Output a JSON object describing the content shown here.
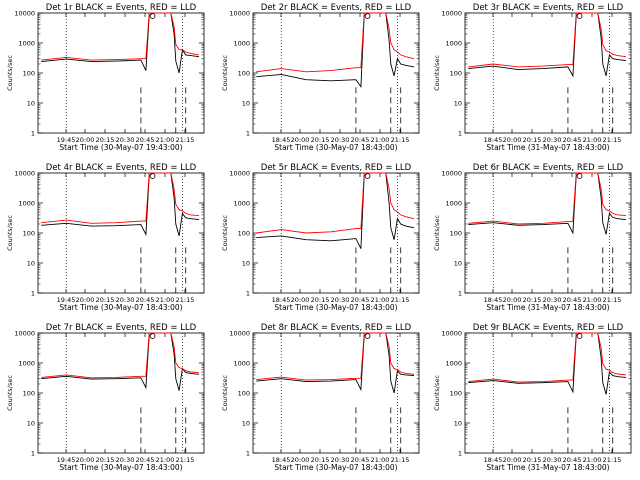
{
  "figure": {
    "background": "#ffffff",
    "colors": {
      "events": "#000000",
      "lld": "#ff0000",
      "axes": "#000000"
    }
  },
  "chart_data": [
    {
      "type": "line",
      "title": "Det 1r BLACK = Events, RED = LLD",
      "xlabel": "Start Time (30-May-07 19:43:00)",
      "ylabel": "Counts/sec",
      "xlim": [
        "19:43",
        "21:23"
      ],
      "ylim": [
        1,
        10000
      ],
      "yscale": "log",
      "xtick_labels": [
        "19:45",
        "20:00",
        "20:15",
        "20:30",
        "20:45",
        "21:00",
        "21:15"
      ],
      "ytick_labels": [
        "1",
        "10",
        "100",
        "1000",
        "10000"
      ],
      "legend": "none",
      "grid": false,
      "x": [
        "19:45",
        "20:00",
        "20:15",
        "20:30",
        "20:45",
        "20:48",
        "20:50",
        "20:52",
        "20:55",
        "21:00",
        "21:03",
        "21:05",
        "21:06",
        "21:08",
        "21:10",
        "21:12",
        "21:15",
        "21:20"
      ],
      "series": [
        {
          "name": "Events",
          "values": [
            240,
            290,
            240,
            250,
            270,
            120,
            8000,
            10000,
            10000,
            10000,
            10000,
            2000,
            250,
            100,
            600,
            400,
            380,
            350
          ]
        },
        {
          "name": "LLD",
          "values": [
            270,
            330,
            270,
            280,
            300,
            300,
            10000,
            10000,
            10000,
            10000,
            10000,
            3500,
            900,
            600,
            600,
            500,
            450,
            400
          ]
        }
      ],
      "annotations": {
        "dotted_x": [
          "20:00",
          "21:10"
        ],
        "dashed_x": [
          "20:45",
          "21:06",
          "21:12"
        ],
        "marker_x": "20:52"
      }
    },
    {
      "type": "line",
      "title": "Det 2r BLACK = Events, RED = LLD",
      "xlabel": "Start Time (30-May-07 18:43:00)",
      "ylabel": "Counts/sec",
      "xlim": [
        "18:43",
        "21:23"
      ],
      "ylim": [
        1,
        10000
      ],
      "yscale": "log",
      "xtick_labels": [
        "18:45",
        "20:00",
        "20:15",
        "20:30",
        "20:45",
        "21:00",
        "21:15"
      ],
      "ytick_labels": [
        "1",
        "10",
        "100",
        "1000",
        "10000"
      ],
      "legend": "none",
      "grid": false,
      "x": [
        "19:45",
        "20:00",
        "20:15",
        "20:30",
        "20:45",
        "20:48",
        "20:50",
        "20:52",
        "20:55",
        "21:00",
        "21:03",
        "21:05",
        "21:06",
        "21:08",
        "21:10",
        "21:12",
        "21:15",
        "21:20"
      ],
      "series": [
        {
          "name": "Events",
          "values": [
            75,
            90,
            60,
            55,
            60,
            35,
            8000,
            10000,
            10000,
            10000,
            10000,
            1200,
            200,
            80,
            300,
            200,
            180,
            160
          ]
        },
        {
          "name": "LLD",
          "values": [
            110,
            140,
            110,
            120,
            150,
            150,
            10000,
            10000,
            10000,
            10000,
            10000,
            3000,
            1000,
            600,
            500,
            400,
            350,
            300
          ]
        }
      ],
      "annotations": {
        "dotted_x": [
          "20:00",
          "21:10"
        ],
        "dashed_x": [
          "20:45",
          "21:06",
          "21:12"
        ],
        "marker_x": "20:52"
      }
    },
    {
      "type": "line",
      "title": "Det 3r BLACK = Events, RED = LLD",
      "xlabel": "Start Time (31-May-07 18:43:00)",
      "ylabel": "Counts/sec",
      "xlim": [
        "18:43",
        "21:23"
      ],
      "ylim": [
        1,
        10000
      ],
      "yscale": "log",
      "xtick_labels": [
        "18:45",
        "20:00",
        "20:15",
        "20:30",
        "20:45",
        "21:00",
        "21:15"
      ],
      "ytick_labels": [
        "1",
        "10",
        "100",
        "1000",
        "10000"
      ],
      "legend": "none",
      "grid": false,
      "x": [
        "19:45",
        "20:00",
        "20:15",
        "20:30",
        "20:45",
        "20:48",
        "20:50",
        "20:52",
        "20:55",
        "21:00",
        "21:03",
        "21:05",
        "21:06",
        "21:08",
        "21:10",
        "21:12",
        "21:15",
        "21:20"
      ],
      "series": [
        {
          "name": "Events",
          "values": [
            140,
            170,
            130,
            140,
            160,
            80,
            8000,
            10000,
            10000,
            10000,
            10000,
            1500,
            200,
            80,
            400,
            300,
            280,
            260
          ]
        },
        {
          "name": "LLD",
          "values": [
            160,
            200,
            160,
            170,
            190,
            190,
            10000,
            10000,
            10000,
            10000,
            10000,
            3000,
            900,
            550,
            500,
            420,
            380,
            350
          ]
        }
      ],
      "annotations": {
        "dotted_x": [
          "20:00",
          "21:10"
        ],
        "dashed_x": [
          "20:45",
          "21:06",
          "21:12"
        ],
        "marker_x": "20:52"
      }
    },
    {
      "type": "line",
      "title": "Det 4r BLACK = Events, RED = LLD",
      "xlabel": "Start Time (30-May-07 18:43:00)",
      "ylabel": "Counts/sec",
      "xlim": [
        "18:43",
        "21:23"
      ],
      "ylim": [
        1,
        10000
      ],
      "yscale": "log",
      "xtick_labels": [
        "19:45",
        "20:00",
        "20:15",
        "20:30",
        "20:45",
        "21:00",
        "21:15"
      ],
      "ytick_labels": [
        "1",
        "10",
        "100",
        "1000",
        "10000"
      ],
      "legend": "none",
      "grid": false,
      "x": [
        "19:45",
        "20:00",
        "20:15",
        "20:30",
        "20:45",
        "20:48",
        "20:50",
        "20:52",
        "20:55",
        "21:00",
        "21:03",
        "21:05",
        "21:06",
        "21:08",
        "21:10",
        "21:12",
        "21:15",
        "21:20"
      ],
      "series": [
        {
          "name": "Events",
          "values": [
            180,
            210,
            170,
            175,
            190,
            90,
            8000,
            10000,
            10000,
            10000,
            10000,
            1500,
            200,
            80,
            450,
            320,
            300,
            280
          ]
        },
        {
          "name": "LLD",
          "values": [
            220,
            270,
            210,
            220,
            250,
            250,
            10000,
            10000,
            10000,
            10000,
            10000,
            3000,
            900,
            600,
            550,
            450,
            400,
            380
          ]
        }
      ],
      "annotations": {
        "dotted_x": [
          "20:00",
          "21:10"
        ],
        "dashed_x": [
          "20:45",
          "21:06",
          "21:12"
        ],
        "marker_x": "20:52"
      }
    },
    {
      "type": "line",
      "title": "Det 5r BLACK = Events, RED = LLD",
      "xlabel": "Start Time (30-May-07 18:43:00)",
      "ylabel": "Counts/sec",
      "xlim": [
        "18:43",
        "21:23"
      ],
      "ylim": [
        1,
        10000
      ],
      "yscale": "log",
      "xtick_labels": [
        "18:45",
        "20:00",
        "20:15",
        "20:30",
        "20:45",
        "21:00",
        "21:15"
      ],
      "ytick_labels": [
        "1",
        "10",
        "100",
        "1000",
        "10000"
      ],
      "legend": "none",
      "grid": false,
      "x": [
        "19:45",
        "20:00",
        "20:15",
        "20:30",
        "20:45",
        "20:48",
        "20:50",
        "20:52",
        "20:55",
        "21:00",
        "21:03",
        "21:05",
        "21:06",
        "21:08",
        "21:10",
        "21:12",
        "21:15",
        "21:20"
      ],
      "series": [
        {
          "name": "Events",
          "values": [
            70,
            80,
            60,
            55,
            65,
            30,
            8000,
            10000,
            10000,
            10000,
            10000,
            1000,
            150,
            60,
            300,
            200,
            170,
            150
          ]
        },
        {
          "name": "LLD",
          "values": [
            100,
            130,
            100,
            110,
            140,
            140,
            10000,
            10000,
            10000,
            10000,
            10000,
            3000,
            1000,
            600,
            500,
            400,
            350,
            300
          ]
        }
      ],
      "annotations": {
        "dotted_x": [
          "20:00",
          "21:10"
        ],
        "dashed_x": [
          "20:45",
          "21:06",
          "21:12"
        ],
        "marker_x": "20:52"
      }
    },
    {
      "type": "line",
      "title": "Det 6r BLACK = Events, RED = LLD",
      "xlabel": "Start Time (31-May-07 18:43:00)",
      "ylabel": "Counts/sec",
      "xlim": [
        "18:43",
        "21:23"
      ],
      "ylim": [
        1,
        10000
      ],
      "yscale": "log",
      "xtick_labels": [
        "18:45",
        "20:00",
        "20:15",
        "20:30",
        "20:45",
        "21:00",
        "21:15"
      ],
      "ytick_labels": [
        "1",
        "10",
        "100",
        "1000",
        "10000"
      ],
      "legend": "none",
      "grid": false,
      "x": [
        "19:45",
        "20:00",
        "20:15",
        "20:30",
        "20:45",
        "20:48",
        "20:50",
        "20:52",
        "20:55",
        "21:00",
        "21:03",
        "21:05",
        "21:06",
        "21:08",
        "21:10",
        "21:12",
        "21:15",
        "21:20"
      ],
      "series": [
        {
          "name": "Events",
          "values": [
            190,
            220,
            180,
            190,
            210,
            100,
            8000,
            10000,
            10000,
            10000,
            10000,
            1500,
            220,
            90,
            450,
            330,
            300,
            280
          ]
        },
        {
          "name": "LLD",
          "values": [
            210,
            250,
            200,
            210,
            240,
            240,
            10000,
            10000,
            10000,
            10000,
            10000,
            3000,
            900,
            600,
            550,
            450,
            400,
            380
          ]
        }
      ],
      "annotations": {
        "dotted_x": [
          "20:00",
          "21:10"
        ],
        "dashed_x": [
          "20:45",
          "21:06",
          "21:12"
        ],
        "marker_x": "20:52"
      }
    },
    {
      "type": "line",
      "title": "Det 7r BLACK = Events, RED = LLD",
      "xlabel": "Start Time (30-May-07 18:43:00)",
      "ylabel": "Counts/sec",
      "xlim": [
        "18:43",
        "21:23"
      ],
      "ylim": [
        1,
        10000
      ],
      "yscale": "log",
      "xtick_labels": [
        "19:45",
        "20:00",
        "20:15",
        "20:30",
        "20:45",
        "21:00",
        "21:15"
      ],
      "ytick_labels": [
        "1",
        "10",
        "100",
        "1000",
        "10000"
      ],
      "legend": "none",
      "grid": false,
      "x": [
        "19:45",
        "20:00",
        "20:15",
        "20:30",
        "20:45",
        "20:48",
        "20:50",
        "20:52",
        "20:55",
        "21:00",
        "21:03",
        "21:05",
        "21:06",
        "21:08",
        "21:10",
        "21:12",
        "21:15",
        "21:20"
      ],
      "series": [
        {
          "name": "Events",
          "values": [
            300,
            360,
            290,
            300,
            320,
            150,
            8000,
            10000,
            10000,
            10000,
            10000,
            2000,
            300,
            120,
            650,
            480,
            450,
            420
          ]
        },
        {
          "name": "LLD",
          "values": [
            330,
            400,
            320,
            330,
            360,
            360,
            10000,
            10000,
            10000,
            10000,
            10000,
            3500,
            1000,
            700,
            650,
            550,
            500,
            480
          ]
        }
      ],
      "annotations": {
        "dotted_x": [
          "20:00",
          "21:10"
        ],
        "dashed_x": [
          "20:45",
          "21:06",
          "21:12"
        ],
        "marker_x": "20:52"
      }
    },
    {
      "type": "line",
      "title": "Det 8r BLACK = Events, RED = LLD",
      "xlabel": "Start Time (30-May-07 18:43:00)",
      "ylabel": "Counts/sec",
      "xlim": [
        "18:43",
        "21:23"
      ],
      "ylim": [
        1,
        10000
      ],
      "yscale": "log",
      "xtick_labels": [
        "18:45",
        "20:00",
        "20:15",
        "20:30",
        "20:45",
        "21:00",
        "21:15"
      ],
      "ytick_labels": [
        "1",
        "10",
        "100",
        "1000",
        "10000"
      ],
      "legend": "none",
      "grid": false,
      "x": [
        "19:45",
        "20:00",
        "20:15",
        "20:30",
        "20:45",
        "20:48",
        "20:50",
        "20:52",
        "20:55",
        "21:00",
        "21:03",
        "21:05",
        "21:06",
        "21:08",
        "21:10",
        "21:12",
        "21:15",
        "21:20"
      ],
      "series": [
        {
          "name": "Events",
          "values": [
            250,
            300,
            240,
            250,
            280,
            130,
            8000,
            10000,
            10000,
            10000,
            10000,
            1800,
            250,
            100,
            550,
            420,
            400,
            380
          ]
        },
        {
          "name": "LLD",
          "values": [
            280,
            340,
            270,
            280,
            310,
            310,
            10000,
            10000,
            10000,
            10000,
            10000,
            3500,
            1000,
            650,
            600,
            500,
            450,
            420
          ]
        }
      ],
      "annotations": {
        "dotted_x": [
          "20:00",
          "21:10"
        ],
        "dashed_x": [
          "20:45",
          "21:06",
          "21:12"
        ],
        "marker_x": "20:52"
      }
    },
    {
      "type": "line",
      "title": "Det 9r BLACK = Events, RED = LLD",
      "xlabel": "Start Time (31-May-07 18:43:00)",
      "ylabel": "Counts/sec",
      "xlim": [
        "18:43",
        "21:23"
      ],
      "ylim": [
        1,
        10000
      ],
      "yscale": "log",
      "xtick_labels": [
        "18:45",
        "20:00",
        "20:15",
        "20:30",
        "20:45",
        "21:00",
        "21:15"
      ],
      "ytick_labels": [
        "1",
        "10",
        "100",
        "1000",
        "10000"
      ],
      "legend": "none",
      "grid": false,
      "x": [
        "19:45",
        "20:00",
        "20:15",
        "20:30",
        "20:45",
        "20:48",
        "20:50",
        "20:52",
        "20:55",
        "21:00",
        "21:03",
        "21:05",
        "21:06",
        "21:08",
        "21:10",
        "21:12",
        "21:15",
        "21:20"
      ],
      "series": [
        {
          "name": "Events",
          "values": [
            220,
            260,
            210,
            220,
            240,
            110,
            8000,
            10000,
            10000,
            10000,
            10000,
            1500,
            220,
            90,
            500,
            380,
            350,
            330
          ]
        },
        {
          "name": "LLD",
          "values": [
            240,
            290,
            230,
            240,
            270,
            270,
            10000,
            10000,
            10000,
            10000,
            10000,
            3200,
            950,
            620,
            580,
            480,
            430,
            400
          ]
        }
      ],
      "annotations": {
        "dotted_x": [
          "20:00",
          "21:10"
        ],
        "dashed_x": [
          "20:45",
          "21:06",
          "21:12"
        ],
        "marker_x": "20:52"
      }
    }
  ]
}
